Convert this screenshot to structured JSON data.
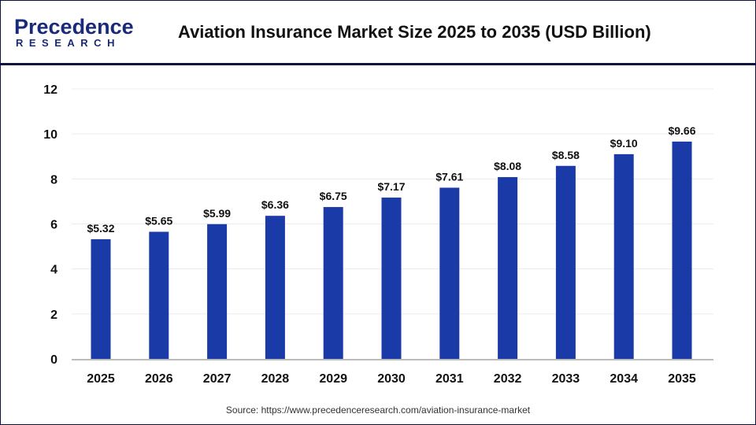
{
  "header": {
    "logo_text": "Precedence",
    "logo_subtext": "RESEARCH",
    "title": "Aviation Insurance Market Size 2025 to 2035 (USD Billion)"
  },
  "source": "Source: https://www.precedenceresearch.com/aviation-insurance-market",
  "chart_data": {
    "type": "bar",
    "title": "Aviation Insurance Market Size 2025 to 2035 (USD Billion)",
    "categories": [
      "2025",
      "2026",
      "2027",
      "2028",
      "2029",
      "2030",
      "2031",
      "2032",
      "2033",
      "2034",
      "2035"
    ],
    "values": [
      5.32,
      5.65,
      5.99,
      6.36,
      6.75,
      7.17,
      7.61,
      8.08,
      8.58,
      9.1,
      9.66
    ],
    "data_labels": [
      "$5.32",
      "$5.65",
      "$5.99",
      "$6.36",
      "$6.75",
      "$7.17",
      "$7.61",
      "$8.08",
      "$8.58",
      "$9.10",
      "$9.66"
    ],
    "yticks": [
      0,
      2,
      4,
      6,
      8,
      10,
      12
    ],
    "ylim": [
      0,
      12
    ],
    "xlabel": "",
    "ylabel": "",
    "grid": true,
    "bar_color": "#1a3aa8"
  }
}
